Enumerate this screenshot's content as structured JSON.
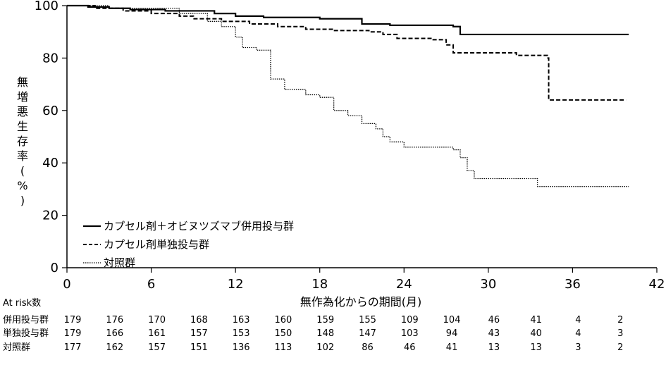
{
  "chart_data": {
    "type": "line",
    "title": "",
    "xlabel": "無作為化からの期間(月)",
    "ylabel": "無増悪生存率(%)",
    "xlim": [
      0,
      42
    ],
    "ylim": [
      0,
      100
    ],
    "xticks": [
      "0",
      "6",
      "12",
      "18",
      "24",
      "30",
      "36",
      "42"
    ],
    "yticks": [
      "0",
      "20",
      "40",
      "60",
      "80",
      "100"
    ],
    "grid": false,
    "legend_position": "bottom-left",
    "series": [
      {
        "name": "カプセル剤＋オビヌツズマブ併用投与群",
        "style": "solid",
        "x": [
          0,
          1.5,
          3,
          4.5,
          7,
          10.5,
          12,
          14,
          18,
          21,
          23,
          24,
          27.5,
          28,
          40
        ],
        "y": [
          100,
          99.5,
          99,
          98.5,
          98,
          97,
          96,
          95.5,
          95,
          93,
          92.5,
          92.5,
          92,
          89,
          89
        ]
      },
      {
        "name": "カプセル剤単独投与群",
        "style": "dashed",
        "x": [
          0,
          2,
          4,
          6,
          8,
          9,
          11,
          13,
          15,
          17,
          19,
          21.5,
          22.5,
          23.5,
          26,
          27,
          27.5,
          32,
          34.2,
          34.3,
          39.8
        ],
        "y": [
          100,
          99,
          98,
          97,
          96,
          95,
          94,
          93,
          92,
          91,
          90.5,
          90,
          89,
          87.5,
          87,
          85,
          82,
          81,
          80,
          64,
          64
        ]
      },
      {
        "name": "対照群",
        "style": "dotted",
        "x": [
          0,
          3,
          8,
          10,
          11,
          12,
          12.5,
          13.5,
          14.5,
          15.5,
          17,
          18,
          19,
          20,
          21,
          22,
          22.5,
          23,
          24,
          27.5,
          28,
          28.5,
          29,
          33,
          33.5,
          40
        ],
        "y": [
          100,
          99,
          97,
          94,
          92,
          88,
          84,
          83,
          72,
          68,
          66,
          65,
          60,
          58,
          55,
          53,
          50,
          48,
          46,
          45,
          42,
          37,
          34,
          34,
          31,
          31
        ]
      }
    ]
  },
  "risk_table": {
    "title": "At risk数",
    "times": [
      "0",
      "3",
      "6",
      "9",
      "12",
      "15",
      "18",
      "21",
      "24",
      "27",
      "30",
      "33",
      "36",
      "39"
    ],
    "rows": [
      {
        "label": "併用投与群",
        "values": [
          "179",
          "176",
          "170",
          "168",
          "163",
          "160",
          "159",
          "155",
          "109",
          "104",
          "46",
          "41",
          "4",
          "2"
        ]
      },
      {
        "label": "単独投与群",
        "values": [
          "179",
          "166",
          "161",
          "157",
          "153",
          "150",
          "148",
          "147",
          "103",
          "94",
          "43",
          "40",
          "4",
          "3"
        ]
      },
      {
        "label": "対照群",
        "values": [
          "177",
          "162",
          "157",
          "151",
          "136",
          "113",
          "102",
          "86",
          "46",
          "41",
          "13",
          "13",
          "3",
          "2"
        ]
      }
    ]
  }
}
